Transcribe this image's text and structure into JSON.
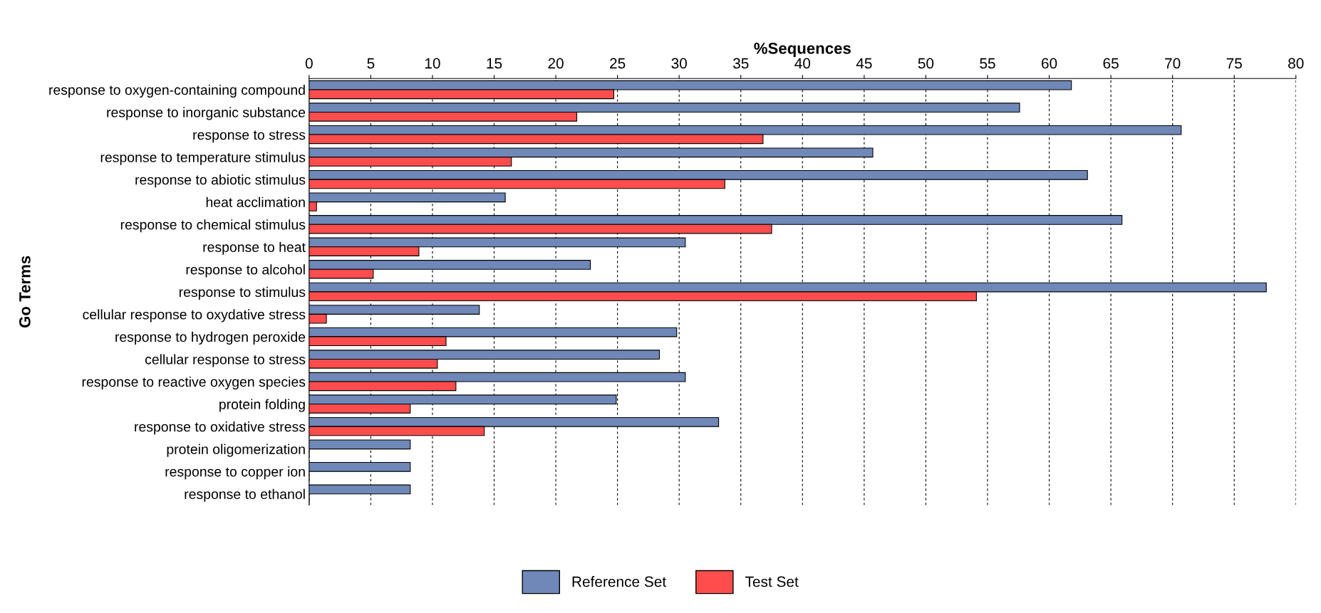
{
  "chart_data": {
    "type": "bar",
    "orientation": "horizontal",
    "xlabel": "%Sequences",
    "ylabel": "Go Terms",
    "categories": [
      "response to oxygen-containing compound",
      "response to inorganic substance",
      "response to stress",
      "response to temperature stimulus",
      "response to abiotic stimulus",
      "heat acclimation",
      "response to chemical stimulus",
      "response to heat",
      "response to alcohol",
      "response to stimulus",
      "cellular response to oxydative stress",
      "response to hydrogen peroxide",
      "cellular response to stress",
      "response to reactive oxygen species",
      "protein folding",
      "response to oxidative stress",
      "protein oligomerization",
      "response to copper ion",
      "response to ethanol"
    ],
    "series": [
      {
        "name": "Reference Set",
        "color": "#6f88b8",
        "values": [
          61.8,
          57.6,
          70.7,
          45.7,
          63.1,
          15.9,
          65.9,
          30.5,
          22.8,
          77.6,
          13.8,
          29.8,
          28.4,
          30.5,
          24.9,
          33.2,
          8.2,
          8.2,
          8.2
        ]
      },
      {
        "name": "Test Set",
        "color": "#ff4d4d",
        "values": [
          24.7,
          21.7,
          36.8,
          16.4,
          33.7,
          0.6,
          37.5,
          8.9,
          5.2,
          54.1,
          1.4,
          11.1,
          10.4,
          11.9,
          8.2,
          14.2,
          0,
          0,
          0
        ]
      }
    ],
    "xlim": [
      0,
      80
    ],
    "xticks": [
      0,
      5,
      10,
      15,
      20,
      25,
      30,
      35,
      40,
      45,
      50,
      55,
      60,
      65,
      70,
      75,
      80
    ],
    "grid": "x",
    "legend": "bottom"
  }
}
